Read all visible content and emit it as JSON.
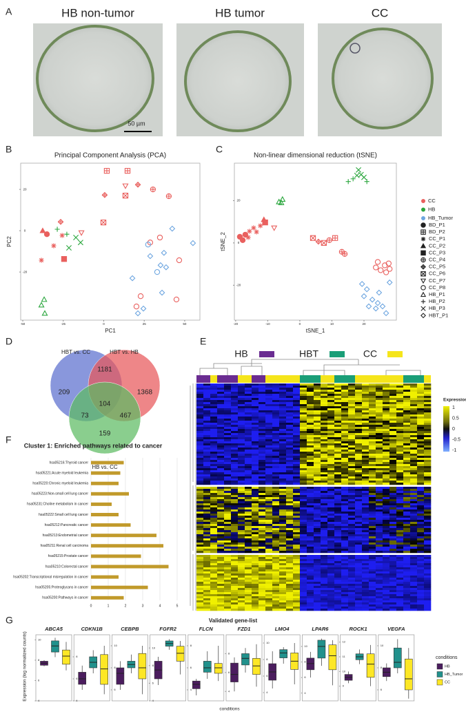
{
  "panel_labels": [
    "A",
    "B",
    "C",
    "D",
    "E",
    "F",
    "G"
  ],
  "photos": {
    "titles": [
      "HB non-tumor",
      "HB tumor",
      "CC"
    ],
    "scale_bar": "50 µm"
  },
  "legend": {
    "conditions": [
      {
        "name": "CC",
        "color": "#e9605e"
      },
      {
        "name": "HB",
        "color": "#2aa63d"
      },
      {
        "name": "HB_Tumor",
        "color": "#6ea6e0"
      }
    ],
    "samples": [
      {
        "name": "BD_P1",
        "shape": "circle"
      },
      {
        "name": "BD_P2",
        "shape": "square_plus"
      },
      {
        "name": "CC_P1",
        "shape": "asterisk"
      },
      {
        "name": "CC_P2",
        "shape": "triangle"
      },
      {
        "name": "CC_P3",
        "shape": "square"
      },
      {
        "name": "CC_P4",
        "shape": "circle_plus"
      },
      {
        "name": "CC_P5",
        "shape": "diamond_plus"
      },
      {
        "name": "CC_P6",
        "shape": "square_x"
      },
      {
        "name": "CC_P7",
        "shape": "triangle_down"
      },
      {
        "name": "CC_P8",
        "shape": "circle_open"
      },
      {
        "name": "HB_P1",
        "shape": "triangle_open"
      },
      {
        "name": "HB_P2",
        "shape": "plus"
      },
      {
        "name": "HB_P3",
        "shape": "cross"
      },
      {
        "name": "HBT_P1",
        "shape": "diamond_open"
      }
    ]
  },
  "heatmap": {
    "groups": [
      {
        "name": "HB",
        "color": "#6a2c91"
      },
      {
        "name": "HBT",
        "color": "#1a9e77"
      },
      {
        "name": "CC",
        "color": "#f5e51b"
      }
    ],
    "legend_title": "Expression",
    "legend_ticks": [
      1,
      0.5,
      0,
      -0.5,
      -1
    ]
  },
  "chart_data": [
    {
      "type": "scatter",
      "title": "Principal Component Analysis (PCA)",
      "xlabel": "PC1",
      "ylabel": "PC2",
      "xlim": [
        -51.3,
        59.4
      ],
      "ylim": [
        -43.3,
        32.7
      ],
      "xticks": [
        -50,
        -25,
        0,
        25,
        50
      ],
      "yticks": [
        20,
        0,
        -20
      ],
      "points": {
        "x": [
          -35.1,
          -37.7,
          -30.9,
          -38.5,
          -26.6,
          -25.7,
          -24.5,
          -13.8,
          -0.2,
          1.9,
          14.7,
          13.4,
          21.1,
          13.4,
          0.6,
          30.4,
          40.2,
          28.7,
          34.7,
          46.6,
          44.9,
          22.8,
          20.2,
          -28.7,
          -22.8,
          -17.2,
          -14.3,
          -21.5,
          -36.8,
          -38.5,
          -36.4,
          42.3,
          55.1,
          28.7,
          37.2,
          35.1,
          38.5,
          33,
          17.7,
          36,
          24.5,
          21.1,
          27.4
        ],
        "y": [
          -1.7,
          0,
          -7.3,
          -14.3,
          4.3,
          -2.3,
          -13.7,
          -1,
          4,
          29,
          29,
          21.7,
          22.3,
          17,
          17.3,
          20,
          16.7,
          -5.7,
          -3.3,
          -14.3,
          -33.3,
          -31.7,
          -36.7,
          0.7,
          -1.7,
          -3.3,
          -5.7,
          -8.3,
          -33.3,
          -36,
          -40,
          1,
          -6,
          -12.3,
          -10.7,
          -16.7,
          -17.7,
          -20,
          -23,
          -30,
          -37.7,
          -40,
          -6.7
        ],
        "condition": [
          0,
          0,
          0,
          0,
          0,
          0,
          0,
          0,
          0,
          0,
          0,
          0,
          0,
          0,
          0,
          0,
          0,
          0,
          0,
          0,
          0,
          0,
          0,
          1,
          1,
          1,
          1,
          1,
          1,
          1,
          1,
          2,
          2,
          2,
          2,
          2,
          2,
          2,
          2,
          2,
          2,
          2,
          2
        ],
        "sample": [
          0,
          3,
          2,
          2,
          6,
          2,
          4,
          8,
          7,
          1,
          1,
          8,
          6,
          7,
          6,
          5,
          5,
          9,
          9,
          9,
          9,
          9,
          9,
          11,
          11,
          12,
          12,
          12,
          10,
          10,
          10,
          13,
          13,
          13,
          13,
          13,
          13,
          9,
          13,
          13,
          13,
          13,
          9
        ]
      }
    },
    {
      "type": "scatter",
      "title": "Non-linear dimensional reduction (tSNE)",
      "xlabel": "tSNE_1",
      "ylabel": "tSNE_2",
      "xlim": [
        -20.4,
        30.1
      ],
      "ylim": [
        -36.5,
        37.7
      ],
      "xticks": [
        -20,
        -10,
        0,
        10,
        20
      ],
      "yticks": [
        20,
        0,
        -20
      ],
      "points": {
        "x": [
          -18.7,
          -17,
          -17.8,
          -15.7,
          -14.4,
          -13.5,
          -12.3,
          -16.1,
          -11.2,
          -10.8,
          -8,
          4.1,
          5.8,
          7.5,
          9.2,
          11,
          13.1,
          14,
          24.3,
          26.5,
          28,
          26.9,
          25.2,
          23.7,
          27.7,
          -6.5,
          -5.4,
          -5.8,
          15.1,
          16.6,
          17.8,
          19.1,
          20,
          18.3,
          20.9,
          19.4,
          20.9,
          20,
          22.6,
          24.3,
          25.8,
          23.7,
          26.9,
          21.5,
          24.7,
          28
        ],
        "y": [
          2.9,
          3.9,
          1.3,
          5.5,
          7.1,
          5.2,
          8.1,
          2.6,
          11,
          9.7,
          7.1,
          2.3,
          0.6,
          0,
          1.3,
          2.3,
          -4.2,
          -5.2,
          -9,
          -10.6,
          -12.3,
          -13.9,
          -12.9,
          -11.6,
          -9.7,
          19.4,
          20.6,
          19,
          29,
          30.3,
          31.9,
          32.3,
          31,
          34.5,
          29,
          -19.4,
          -21.9,
          -25.2,
          -26.8,
          -28.4,
          -30,
          -31,
          -33.2,
          -30,
          -23.5,
          -18.7
        ],
        "condition": [
          0,
          0,
          0,
          0,
          0,
          0,
          0,
          0,
          0,
          0,
          0,
          0,
          0,
          0,
          0,
          0,
          0,
          0,
          0,
          0,
          0,
          0,
          0,
          0,
          0,
          1,
          1,
          1,
          1,
          1,
          1,
          1,
          1,
          1,
          1,
          2,
          2,
          2,
          2,
          2,
          2,
          2,
          2,
          2,
          2,
          2
        ],
        "sample": [
          0,
          0,
          0,
          2,
          2,
          2,
          2,
          2,
          3,
          4,
          8,
          7,
          6,
          7,
          5,
          1,
          5,
          5,
          9,
          9,
          9,
          9,
          9,
          9,
          9,
          10,
          10,
          10,
          11,
          11,
          12,
          12,
          12,
          12,
          11,
          13,
          13,
          13,
          13,
          13,
          13,
          13,
          13,
          13,
          13,
          13
        ]
      }
    },
    {
      "type": "venn",
      "sets": [
        "HBT vs. CC",
        "HBT vs. HB",
        "HB vs. CC"
      ],
      "colors": [
        "#5b6fcf",
        "#e8575a",
        "#5dbb63"
      ],
      "regions": [
        209,
        1181,
        1368,
        104,
        73,
        467,
        159
      ]
    },
    {
      "type": "bar",
      "title": "Cluster 1: Enriched pathways related to cancer",
      "color": "#c19a2b",
      "categories": [
        "hsa05216:Thyroid cancer",
        "hsa05221:Acute myeloid leukemia",
        "hsa05220:Chronic myeloid leukemia",
        "hsa05223:Non-small cell lung cancer",
        "hsa05231:Choline metabolism in cancer",
        "hsa05222:Small cell lung cancer",
        "hsa05212:Pancreatic cancer",
        "hsa05213:Endometrial cancer",
        "hsa05211:Renal cell carcinoma",
        "hsa05215:Prostate cancer",
        "hsa05210:Colorectal cancer",
        "hsa05202:Transcriptional misregulation in cancer",
        "hsa05205:Proteoglycans in cancer",
        "hsa05200:Pathways in cancer"
      ],
      "values": [
        1.9,
        1.7,
        1.6,
        2.2,
        1.2,
        1.6,
        2.3,
        3.8,
        4.2,
        2.9,
        4.5,
        1.6,
        3.3,
        1.9
      ],
      "xlim": [
        0,
        5
      ],
      "xticks": [
        0,
        1,
        2,
        3,
        4,
        5
      ],
      "grid": true
    },
    {
      "type": "box",
      "title": "Validated gene-list",
      "ylabel": "Expression (log normalized counts)",
      "xlabel": "conditions",
      "legend_title": "conditions",
      "groups": [
        {
          "name": "HB",
          "color": "#4b1d5e"
        },
        {
          "name": "HB_Tumor",
          "color": "#21918c"
        },
        {
          "name": "CC",
          "color": "#fde725"
        }
      ],
      "panels": [
        {
          "gene": "ABCA5",
          "ylim": [
            4,
            10.5
          ],
          "yticks": [
            4,
            6,
            8,
            10
          ],
          "boxes": [
            {
              "min": 7.4,
              "q1": 7.5,
              "median": 7.7,
              "q3": 7.9,
              "max": 8
            },
            {
              "min": 8.3,
              "q1": 8.8,
              "median": 9.4,
              "q3": 9.9,
              "max": 10.2
            },
            {
              "min": 7,
              "q1": 7.6,
              "median": 8.4,
              "q3": 9,
              "max": 9.8
            }
          ]
        },
        {
          "gene": "CDKN1B",
          "ylim": [
            4,
            10
          ],
          "yticks": [
            4,
            6,
            8
          ],
          "boxes": [
            {
              "min": 5,
              "q1": 5.5,
              "median": 6,
              "q3": 6.6,
              "max": 7.2
            },
            {
              "min": 6.5,
              "q1": 7,
              "median": 7.5,
              "q3": 8,
              "max": 8.6
            },
            {
              "min": 4.6,
              "q1": 5.5,
              "median": 6.9,
              "q3": 8.2,
              "max": 9
            }
          ]
        },
        {
          "gene": "CEBPB",
          "ylim": [
            5,
            11
          ],
          "yticks": [
            6,
            8,
            10
          ],
          "boxes": [
            {
              "min": 6,
              "q1": 6.5,
              "median": 7.5,
              "q3": 8,
              "max": 8.6
            },
            {
              "min": 7.5,
              "q1": 8,
              "median": 8.3,
              "q3": 8.6,
              "max": 9.2
            },
            {
              "min": 5.6,
              "q1": 7,
              "median": 8,
              "q3": 9.3,
              "max": 10
            }
          ]
        },
        {
          "gene": "FGFR2",
          "ylim": [
            4,
            11.5
          ],
          "yticks": [
            4,
            6,
            8,
            10
          ],
          "boxes": [
            {
              "min": 5.8,
              "q1": 6.5,
              "median": 7.5,
              "q3": 8.5,
              "max": 9
            },
            {
              "min": 9.8,
              "q1": 10.2,
              "median": 10.5,
              "q3": 10.8,
              "max": 11
            },
            {
              "min": 7,
              "q1": 8.5,
              "median": 9.4,
              "q3": 10.2,
              "max": 10.8
            }
          ]
        },
        {
          "gene": "FLCN",
          "ylim": [
            3,
            9
          ],
          "yticks": [
            4,
            6,
            8
          ],
          "boxes": [
            {
              "min": 3.5,
              "q1": 4.1,
              "median": 4.5,
              "q3": 4.8,
              "max": 5
            },
            {
              "min": 5,
              "q1": 5.6,
              "median": 6,
              "q3": 6.6,
              "max": 7.5
            },
            {
              "min": 4.8,
              "q1": 5.5,
              "median": 6,
              "q3": 6.4,
              "max": 8
            }
          ]
        },
        {
          "gene": "FZD1",
          "ylim": [
            3,
            10
          ],
          "yticks": [
            4,
            6,
            8
          ],
          "boxes": [
            {
              "min": 4,
              "q1": 5,
              "median": 5.8,
              "q3": 7,
              "max": 7.6
            },
            {
              "min": 6,
              "q1": 6.8,
              "median": 7.5,
              "q3": 8,
              "max": 8.6
            },
            {
              "min": 4.5,
              "q1": 5.8,
              "median": 6.7,
              "q3": 7.5,
              "max": 9
            }
          ]
        },
        {
          "gene": "LMO4",
          "ylim": [
            3,
            11
          ],
          "yticks": [
            4,
            6,
            8,
            10
          ],
          "boxes": [
            {
              "min": 4.5,
              "q1": 5.5,
              "median": 6.5,
              "q3": 7.5,
              "max": 9
            },
            {
              "min": 7.5,
              "q1": 8.2,
              "median": 8.8,
              "q3": 9.2,
              "max": 9.5
            },
            {
              "min": 5,
              "q1": 6.8,
              "median": 7.8,
              "q3": 8.8,
              "max": 10
            }
          ]
        },
        {
          "gene": "LPAR6",
          "ylim": [
            3,
            11.5
          ],
          "yticks": [
            4,
            6,
            8,
            10
          ],
          "boxes": [
            {
              "min": 6,
              "q1": 7,
              "median": 7.8,
              "q3": 8.5,
              "max": 9.3
            },
            {
              "min": 7.5,
              "q1": 8.5,
              "median": 10,
              "q3": 10.8,
              "max": 11
            },
            {
              "min": 5,
              "q1": 7,
              "median": 8.8,
              "q3": 10.2,
              "max": 10.8
            }
          ]
        },
        {
          "gene": "ROCK1",
          "ylim": [
            8,
            12.5
          ],
          "yticks": [
            9,
            10,
            11,
            12
          ],
          "boxes": [
            {
              "min": 9.2,
              "q1": 9.4,
              "median": 9.6,
              "q3": 9.8,
              "max": 10
            },
            {
              "min": 10.5,
              "q1": 10.8,
              "median": 11,
              "q3": 11.2,
              "max": 11.5
            },
            {
              "min": 9,
              "q1": 9.6,
              "median": 10.5,
              "q3": 11.2,
              "max": 11.8
            }
          ]
        },
        {
          "gene": "VEGFA",
          "ylim": [
            5,
            11
          ],
          "yticks": [
            6,
            8,
            10
          ],
          "boxes": [
            {
              "min": 6.8,
              "q1": 7.2,
              "median": 7.6,
              "q3": 8,
              "max": 8.4
            },
            {
              "min": 7.5,
              "q1": 8,
              "median": 8.5,
              "q3": 9.8,
              "max": 10.6
            },
            {
              "min": 5.2,
              "q1": 6,
              "median": 7,
              "q3": 8.8,
              "max": 9.8
            }
          ]
        }
      ]
    }
  ]
}
